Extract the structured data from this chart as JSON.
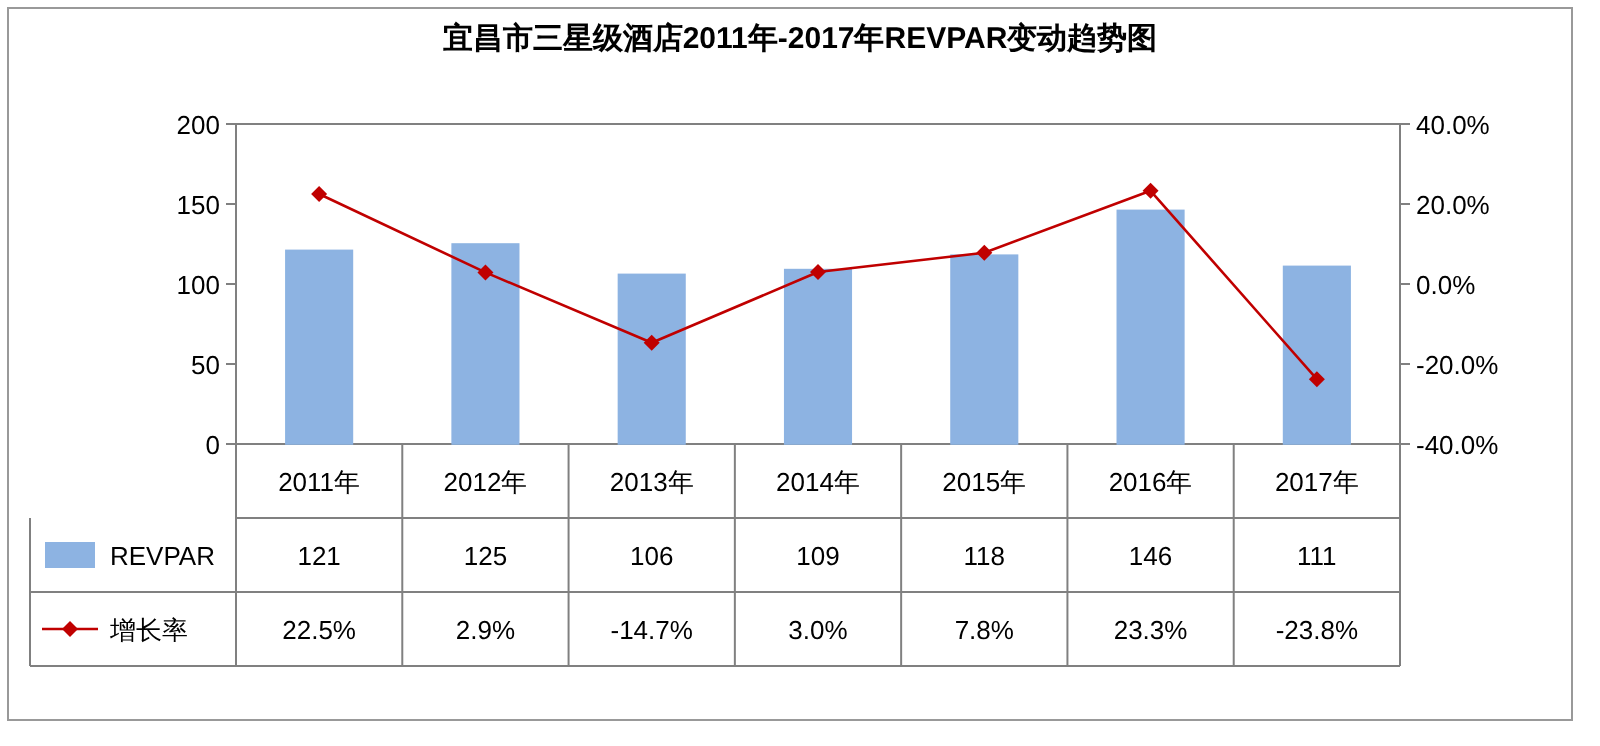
{
  "chart_data": {
    "type": "bar",
    "title": "宜昌市三星级酒店2011年-2017年REVPAR变动趋势图",
    "categories": [
      "2011年",
      "2012年",
      "2013年",
      "2014年",
      "2015年",
      "2016年",
      "2017年"
    ],
    "series": [
      {
        "name": "REVPAR",
        "color": "#8db3e2",
        "values": [
          121,
          125,
          106,
          109,
          118,
          146,
          111
        ],
        "value_labels": [
          "121",
          "125",
          "106",
          "109",
          "118",
          "146",
          "111"
        ]
      },
      {
        "name": "增长率",
        "type": "line",
        "axis": "y2",
        "color": "#c00000",
        "marker": "diamond",
        "line_style": "solid",
        "values": [
          22.5,
          2.9,
          -14.7,
          3.0,
          7.8,
          23.3,
          -23.8
        ],
        "value_labels": [
          "22.5%",
          "2.9%",
          "-14.7%",
          "3.0%",
          "7.8%",
          "23.3%",
          "-23.8%"
        ]
      }
    ],
    "ylim": [
      0,
      200
    ],
    "yticks": [
      0,
      50,
      100,
      150,
      200
    ],
    "y2lim": [
      -40,
      40
    ],
    "y2ticks": [
      {
        "value": -40,
        "label": "-40.0%"
      },
      {
        "value": -20,
        "label": "-20.0%"
      },
      {
        "value": 0,
        "label": "0.0%"
      },
      {
        "value": 20,
        "label": "20.0%"
      },
      {
        "value": 40,
        "label": "40.0%"
      }
    ],
    "legend": "bottom left"
  }
}
